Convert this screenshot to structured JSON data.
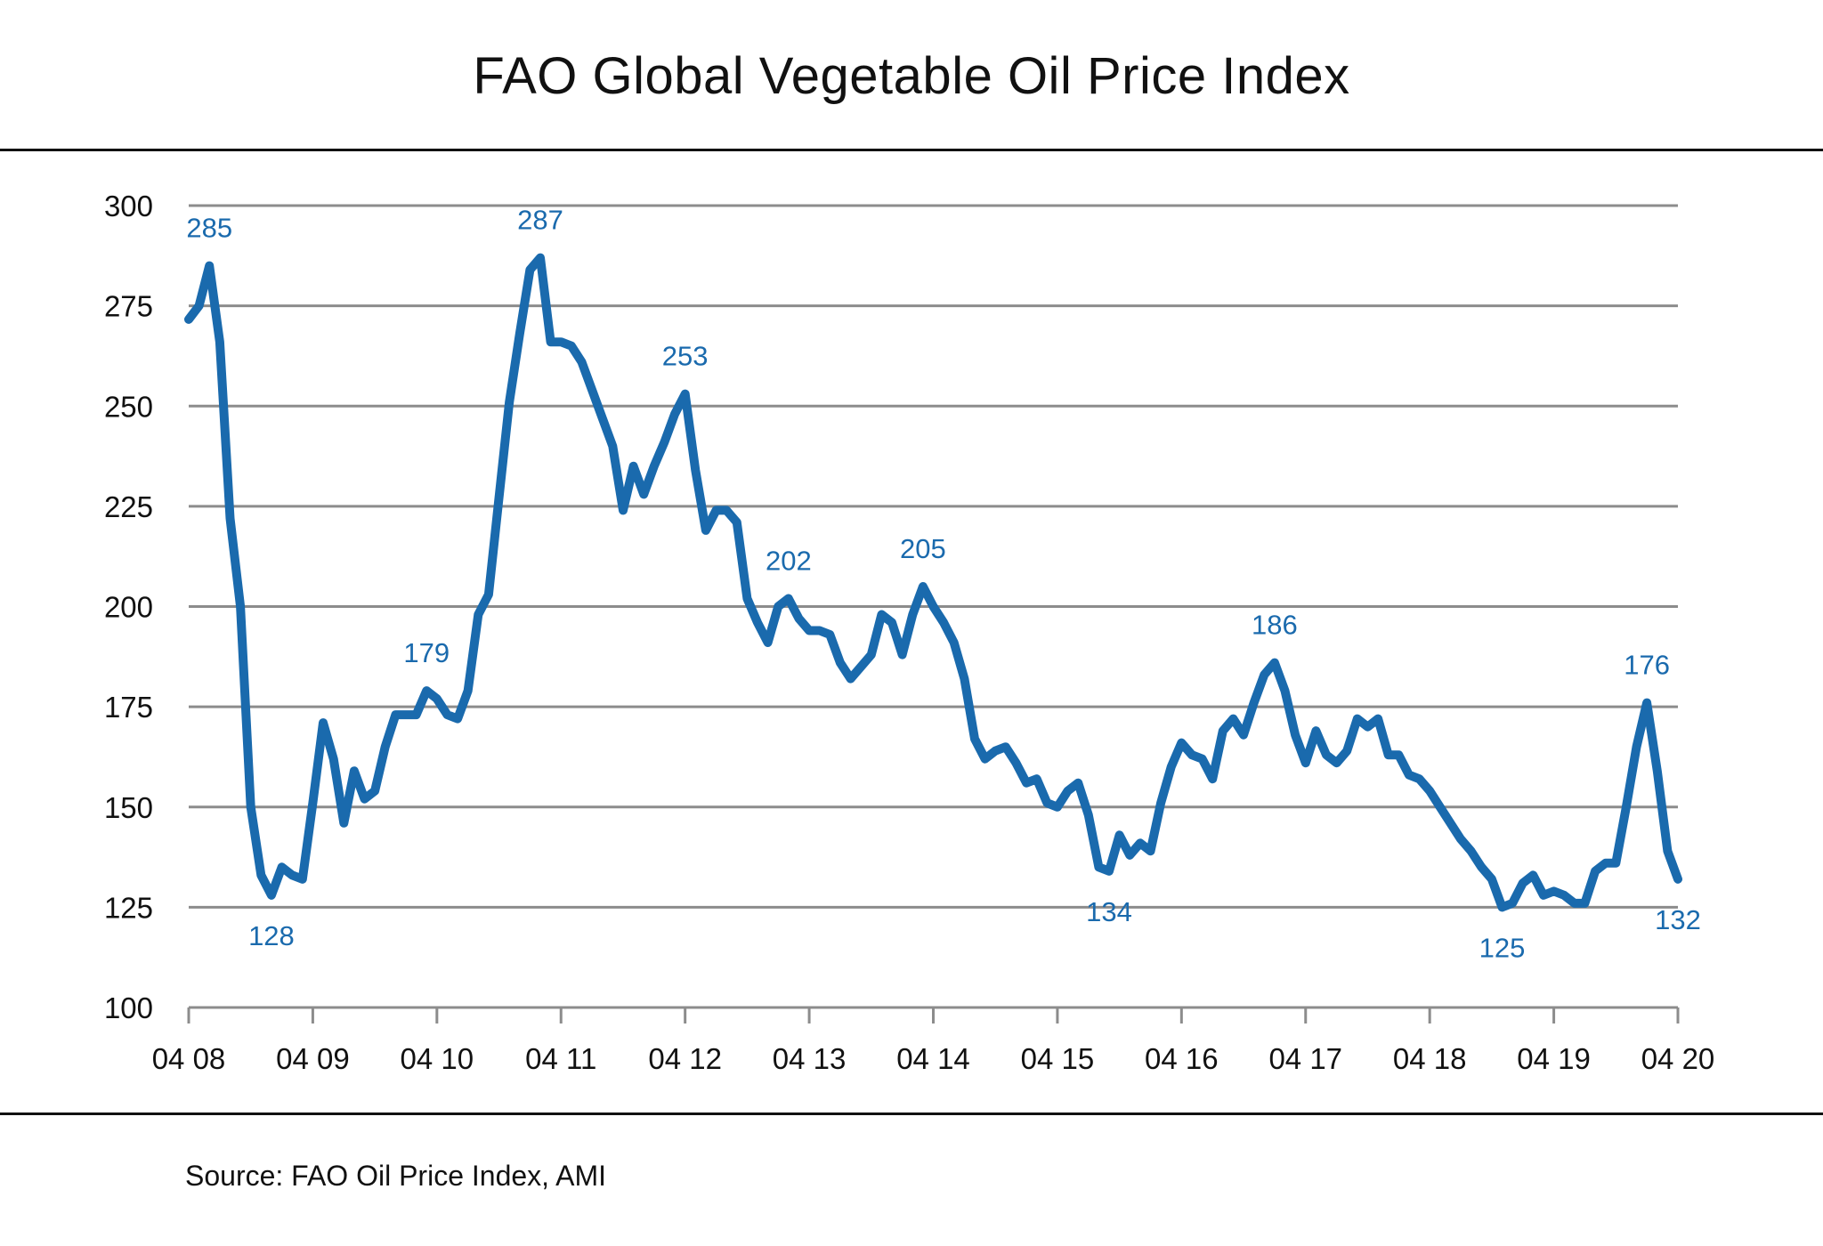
{
  "title": "FAO Global  Vegetable Oil Price Index",
  "source": "Source:  FAO Oil Price Index,  AMI",
  "colors": {
    "line": "#1a6aad",
    "grid": "#8c8c8c",
    "text": "#111111",
    "label": "#1a6aad"
  },
  "chart_data": {
    "type": "line",
    "title": "FAO Global  Vegetable Oil Price Index",
    "xlabel": "",
    "ylabel": "",
    "ylim": [
      100,
      300
    ],
    "yticks": [
      100,
      125,
      150,
      175,
      200,
      225,
      250,
      275,
      300
    ],
    "xticks": [
      "04 08",
      "04 09",
      "04 10",
      "04 11",
      "04 12",
      "04 13",
      "04 14",
      "04 15",
      "04 16",
      "04 17",
      "04 18",
      "04 19",
      "04 20"
    ],
    "x_range": [
      "2008-04",
      "2020-04"
    ],
    "grid": true,
    "legend": "none",
    "series": [
      {
        "name": "FAO Vegetable Oil Price Index",
        "frequency": "monthly",
        "start": "2008-04",
        "values": [
          271.6,
          275,
          285,
          266,
          222,
          200,
          150,
          133,
          128,
          135,
          133,
          132,
          151,
          171,
          162,
          146,
          159,
          152,
          154,
          165,
          173,
          173,
          173,
          179,
          177,
          173,
          172,
          179,
          198,
          203,
          227,
          251,
          268,
          284,
          287,
          266,
          266,
          265,
          261,
          254,
          247,
          240,
          224,
          235,
          228,
          235,
          241,
          248,
          253,
          234,
          219,
          224,
          224,
          221,
          202,
          196,
          191,
          200,
          202,
          197,
          194,
          194,
          193,
          186,
          182,
          185,
          188,
          198,
          196,
          188,
          198,
          205,
          200,
          196,
          191,
          182,
          167,
          162,
          164,
          165,
          161,
          156,
          157,
          151,
          150,
          154,
          156,
          148,
          135,
          134,
          143,
          138,
          141,
          139,
          151,
          160,
          166,
          163,
          162,
          157,
          169,
          172,
          168,
          176,
          183,
          186,
          179,
          168,
          161,
          169,
          163,
          161,
          164,
          172,
          170,
          172,
          163,
          163,
          158,
          157,
          154,
          150,
          146,
          142,
          139,
          135,
          132,
          125,
          126,
          131,
          133,
          128,
          129,
          128,
          126,
          126,
          134,
          136,
          136,
          150,
          165,
          176,
          159,
          139,
          132
        ]
      }
    ],
    "annotations": [
      {
        "index": 2,
        "text": "285",
        "position": "above"
      },
      {
        "index": 8,
        "text": "128",
        "position": "below"
      },
      {
        "index": 23,
        "text": "179",
        "position": "above"
      },
      {
        "index": 34,
        "text": "287",
        "position": "above"
      },
      {
        "index": 48,
        "text": "253",
        "position": "above"
      },
      {
        "index": 58,
        "text": "202",
        "position": "above"
      },
      {
        "index": 71,
        "text": "205",
        "position": "above"
      },
      {
        "index": 89,
        "text": "134",
        "position": "below"
      },
      {
        "index": 105,
        "text": "186",
        "position": "above"
      },
      {
        "index": 127,
        "text": "125",
        "position": "below"
      },
      {
        "index": 141,
        "text": "176",
        "position": "above"
      },
      {
        "index": 144,
        "text": "132",
        "position": "below"
      }
    ]
  }
}
